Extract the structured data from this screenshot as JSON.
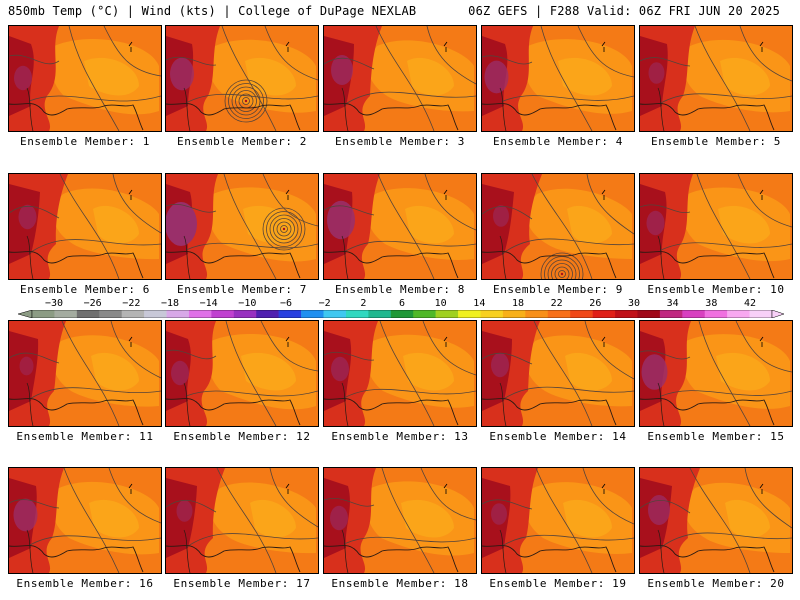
{
  "header": {
    "left": "850mb Temp (°C) | Wind (kts) | College of DuPage NEXLAB",
    "right": "06Z GEFS | F288 Valid: 06Z FRI JUN 20 2025"
  },
  "members": [
    {
      "label": "Ensemble Member: 1",
      "low": false,
      "purple": 0.3
    },
    {
      "label": "Ensemble Member: 2",
      "low": true,
      "purple": 0.6
    },
    {
      "label": "Ensemble Member: 3",
      "low": false,
      "purple": 0.5
    },
    {
      "label": "Ensemble Member: 4",
      "low": false,
      "purple": 0.6
    },
    {
      "label": "Ensemble Member: 5",
      "low": false,
      "purple": 0.2
    },
    {
      "label": "Ensemble Member: 6",
      "low": false,
      "purple": 0.3
    },
    {
      "label": "Ensemble Member: 7",
      "low": true,
      "purple": 1.0
    },
    {
      "label": "Ensemble Member: 8",
      "low": false,
      "purple": 0.8
    },
    {
      "label": "Ensemble Member: 9",
      "low": true,
      "purple": 0.2
    },
    {
      "label": "Ensemble Member: 10",
      "low": false,
      "purple": 0.3
    },
    {
      "label": "Ensemble Member: 11",
      "low": false,
      "purple": 0.1
    },
    {
      "label": "Ensemble Member: 12",
      "low": false,
      "purple": 0.3
    },
    {
      "label": "Ensemble Member: 13",
      "low": false,
      "purple": 0.3
    },
    {
      "label": "Ensemble Member: 14",
      "low": false,
      "purple": 0.3
    },
    {
      "label": "Ensemble Member: 15",
      "low": false,
      "purple": 0.7
    },
    {
      "label": "Ensemble Member: 16",
      "low": false,
      "purple": 0.6
    },
    {
      "label": "Ensemble Member: 17",
      "low": false,
      "purple": 0.2
    },
    {
      "label": "Ensemble Member: 18",
      "low": false,
      "purple": 0.3
    },
    {
      "label": "Ensemble Member: 19",
      "low": false,
      "purple": 0.2
    },
    {
      "label": "Ensemble Member: 20",
      "low": false,
      "purple": 0.5
    }
  ],
  "colorbar": {
    "labels": [
      "−30",
      "−26",
      "−22",
      "−18",
      "−14",
      "−10",
      "−6",
      "−2",
      "2",
      "6",
      "10",
      "14",
      "18",
      "22",
      "26",
      "30",
      "34",
      "38",
      "42"
    ],
    "colors": [
      "#8c9c84",
      "#a4aca0",
      "#707070",
      "#8a8a8a",
      "#b4b4b4",
      "#c8c8d8",
      "#d8a8e8",
      "#e070e8",
      "#c040d0",
      "#9830c0",
      "#5020b0",
      "#2840e0",
      "#2090f0",
      "#40c8f0",
      "#30d8c0",
      "#20b890",
      "#209838",
      "#50b828",
      "#a0d020",
      "#f0f020",
      "#f8d020",
      "#f8b018",
      "#f89018",
      "#f87018",
      "#f04818",
      "#e02018",
      "#c01018",
      "#a00818",
      "#c02880",
      "#d840c0",
      "#f070e0",
      "#f8a8f0",
      "#f8d0f8"
    ]
  },
  "palette": {
    "red": "#d8301c",
    "darkred": "#a8101c",
    "orange": "#f47a16",
    "lightorange": "#fa9a18",
    "yellow": "#fbb21c",
    "purple": "#9a2f6a",
    "contour": "#55433a",
    "coast": "#2a1a12"
  }
}
